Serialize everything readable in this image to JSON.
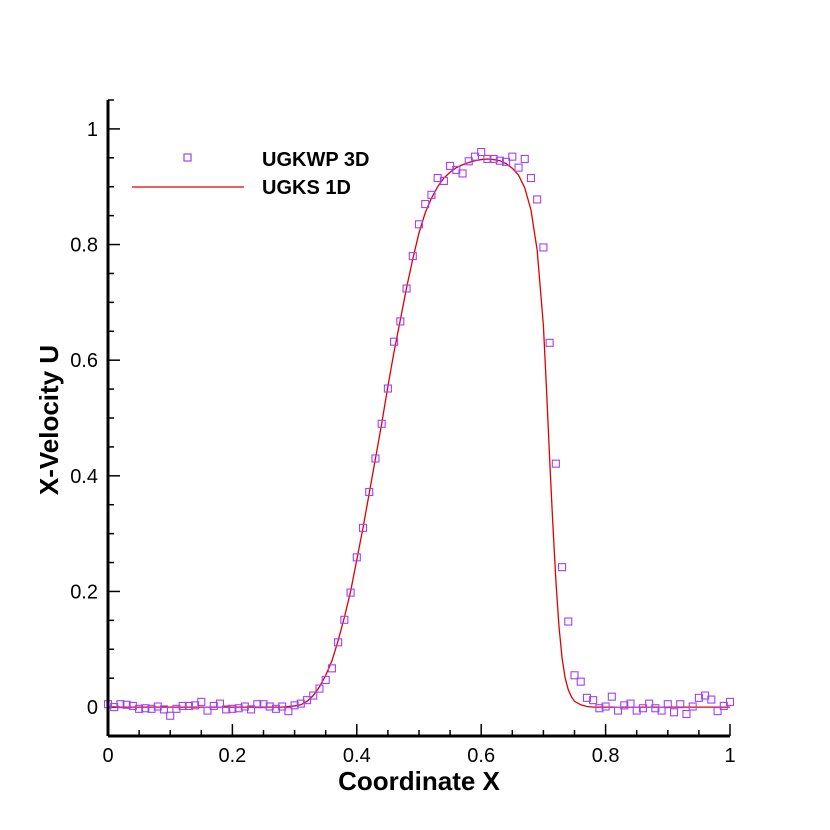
{
  "chart_data": {
    "type": "line",
    "xlabel": "Coordinate X",
    "ylabel": "X-Velocity U",
    "xlim": [
      0,
      1
    ],
    "ylim": [
      -0.05,
      1.05
    ],
    "xticks": [
      "0",
      "0.2",
      "0.4",
      "0.6",
      "0.8",
      "1"
    ],
    "yticks": [
      "0",
      "0.2",
      "0.4",
      "0.6",
      "0.8",
      "1"
    ],
    "grid": false,
    "legend_position": "top-left",
    "series": [
      {
        "name": "UGKWP 3D",
        "style": "markers-square",
        "color": "#a040ff",
        "x": [
          0.0,
          0.01,
          0.02,
          0.03,
          0.04,
          0.05,
          0.06,
          0.07,
          0.08,
          0.09,
          0.1,
          0.11,
          0.12,
          0.13,
          0.14,
          0.15,
          0.16,
          0.17,
          0.18,
          0.19,
          0.2,
          0.21,
          0.22,
          0.23,
          0.24,
          0.25,
          0.26,
          0.27,
          0.28,
          0.29,
          0.3,
          0.31,
          0.32,
          0.33,
          0.34,
          0.35,
          0.36,
          0.37,
          0.38,
          0.39,
          0.4,
          0.41,
          0.42,
          0.43,
          0.44,
          0.45,
          0.46,
          0.47,
          0.48,
          0.49,
          0.5,
          0.51,
          0.52,
          0.53,
          0.54,
          0.55,
          0.56,
          0.57,
          0.58,
          0.59,
          0.6,
          0.61,
          0.62,
          0.63,
          0.64,
          0.65,
          0.66,
          0.67,
          0.68,
          0.69,
          0.7,
          0.71,
          0.72,
          0.73,
          0.74,
          0.75,
          0.76,
          0.77,
          0.78,
          0.79,
          0.8,
          0.81,
          0.82,
          0.83,
          0.84,
          0.85,
          0.86,
          0.87,
          0.88,
          0.89,
          0.9,
          0.91,
          0.92,
          0.93,
          0.94,
          0.95,
          0.96,
          0.97,
          0.98,
          0.99,
          1.0
        ],
        "y": [
          0.005,
          0.0,
          0.005,
          0.004,
          0.002,
          -0.003,
          -0.002,
          -0.003,
          0.001,
          -0.004,
          -0.015,
          -0.003,
          0.002,
          0.002,
          0.003,
          0.009,
          -0.006,
          0.002,
          0.006,
          -0.004,
          -0.003,
          -0.002,
          0.001,
          -0.004,
          0.005,
          0.005,
          0.001,
          -0.003,
          0.001,
          -0.007,
          0.003,
          0.006,
          0.012,
          0.02,
          0.032,
          0.047,
          0.067,
          0.112,
          0.151,
          0.198,
          0.259,
          0.31,
          0.372,
          0.43,
          0.49,
          0.551,
          0.632,
          0.667,
          0.724,
          0.78,
          0.835,
          0.87,
          0.886,
          0.915,
          0.91,
          0.936,
          0.929,
          0.923,
          0.944,
          0.952,
          0.96,
          0.948,
          0.948,
          0.945,
          0.943,
          0.952,
          0.933,
          0.948,
          0.915,
          0.878,
          0.795,
          0.63,
          0.421,
          0.242,
          0.148,
          0.055,
          0.044,
          0.016,
          0.012,
          -0.002,
          0.001,
          0.018,
          -0.006,
          0.003,
          0.006,
          -0.006,
          -0.002,
          0.006,
          -0.002,
          -0.006,
          0.005,
          -0.009,
          0.005,
          -0.012,
          0.001,
          0.016,
          0.02,
          0.013,
          -0.007,
          0.002,
          0.009
        ]
      },
      {
        "name": "UGKS 1D",
        "style": "line",
        "color": "#e00000",
        "x": [
          0.0,
          0.02,
          0.04,
          0.06,
          0.08,
          0.1,
          0.12,
          0.14,
          0.16,
          0.18,
          0.2,
          0.22,
          0.24,
          0.26,
          0.28,
          0.3,
          0.31,
          0.32,
          0.33,
          0.34,
          0.35,
          0.36,
          0.37,
          0.38,
          0.39,
          0.4,
          0.41,
          0.42,
          0.43,
          0.44,
          0.45,
          0.46,
          0.47,
          0.48,
          0.49,
          0.5,
          0.51,
          0.52,
          0.53,
          0.54,
          0.55,
          0.56,
          0.57,
          0.58,
          0.59,
          0.6,
          0.61,
          0.62,
          0.63,
          0.64,
          0.65,
          0.66,
          0.67,
          0.68,
          0.69,
          0.7,
          0.705,
          0.71,
          0.715,
          0.72,
          0.725,
          0.73,
          0.735,
          0.74,
          0.745,
          0.75,
          0.76,
          0.77,
          0.78,
          0.8,
          0.82,
          0.85,
          0.9,
          0.95,
          1.0
        ],
        "y": [
          0.0,
          0.0,
          0.0,
          0.0,
          0.0,
          0.0,
          0.0,
          0.0,
          0.0,
          0.0,
          0.0,
          0.0,
          0.0,
          0.0,
          0.0,
          0.002,
          0.004,
          0.01,
          0.02,
          0.035,
          0.055,
          0.08,
          0.115,
          0.155,
          0.2,
          0.255,
          0.31,
          0.37,
          0.43,
          0.49,
          0.555,
          0.615,
          0.67,
          0.725,
          0.775,
          0.82,
          0.855,
          0.88,
          0.9,
          0.915,
          0.925,
          0.933,
          0.938,
          0.942,
          0.945,
          0.947,
          0.948,
          0.947,
          0.945,
          0.94,
          0.932,
          0.92,
          0.898,
          0.86,
          0.79,
          0.66,
          0.55,
          0.43,
          0.32,
          0.22,
          0.14,
          0.085,
          0.05,
          0.03,
          0.018,
          0.01,
          0.004,
          0.001,
          0.0,
          0.0,
          0.0,
          0.0,
          0.0,
          0.0,
          0.0
        ]
      }
    ]
  }
}
